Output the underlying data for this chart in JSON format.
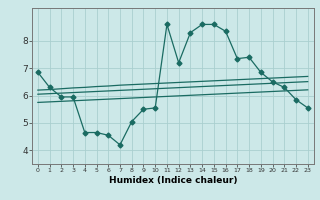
{
  "xlabel": "Humidex (Indice chaleur)",
  "bg_color": "#cce8e8",
  "line_color": "#1a6b62",
  "grid_color": "#aacfcf",
  "xticks": [
    0,
    1,
    2,
    3,
    4,
    5,
    6,
    7,
    8,
    9,
    10,
    11,
    12,
    13,
    14,
    15,
    16,
    17,
    18,
    19,
    20,
    21,
    22,
    23
  ],
  "yticks": [
    4,
    5,
    6,
    7,
    8
  ],
  "xlim": [
    -0.5,
    23.5
  ],
  "ylim": [
    3.5,
    9.2
  ],
  "series": {
    "line1_x": [
      0,
      1,
      2,
      3,
      4,
      5,
      6,
      7,
      8,
      9,
      10,
      11,
      12,
      13,
      14,
      15,
      16,
      17,
      18,
      19,
      20,
      21,
      22,
      23
    ],
    "line1_y": [
      6.85,
      6.3,
      5.95,
      5.95,
      4.65,
      4.65,
      4.55,
      4.2,
      5.05,
      5.5,
      5.55,
      8.6,
      7.2,
      8.3,
      8.6,
      8.6,
      8.35,
      7.35,
      7.4,
      6.85,
      6.5,
      6.3,
      5.85,
      5.55
    ],
    "line2_x": [
      0,
      1,
      2,
      3,
      4,
      5,
      6,
      7,
      8,
      9,
      10,
      11,
      12,
      13,
      14,
      15,
      16,
      17,
      18,
      19,
      20,
      21,
      22,
      23
    ],
    "line2_y": [
      6.2,
      6.22,
      6.25,
      6.28,
      6.3,
      6.33,
      6.35,
      6.38,
      6.4,
      6.42,
      6.44,
      6.46,
      6.48,
      6.5,
      6.52,
      6.54,
      6.56,
      6.58,
      6.6,
      6.62,
      6.64,
      6.66,
      6.68,
      6.7
    ],
    "line3_x": [
      0,
      1,
      2,
      3,
      4,
      5,
      6,
      7,
      8,
      9,
      10,
      11,
      12,
      13,
      14,
      15,
      16,
      17,
      18,
      19,
      20,
      21,
      22,
      23
    ],
    "line3_y": [
      6.05,
      6.07,
      6.09,
      6.11,
      6.13,
      6.15,
      6.17,
      6.19,
      6.21,
      6.23,
      6.25,
      6.27,
      6.29,
      6.31,
      6.33,
      6.35,
      6.37,
      6.39,
      6.41,
      6.43,
      6.45,
      6.47,
      6.49,
      6.51
    ],
    "line4_x": [
      0,
      1,
      2,
      3,
      4,
      5,
      6,
      7,
      8,
      9,
      10,
      11,
      12,
      13,
      14,
      15,
      16,
      17,
      18,
      19,
      20,
      21,
      22,
      23
    ],
    "line4_y": [
      5.75,
      5.77,
      5.79,
      5.81,
      5.83,
      5.85,
      5.87,
      5.89,
      5.91,
      5.93,
      5.95,
      5.97,
      5.99,
      6.01,
      6.03,
      6.05,
      6.07,
      6.09,
      6.11,
      6.13,
      6.15,
      6.17,
      6.19,
      6.21
    ]
  }
}
